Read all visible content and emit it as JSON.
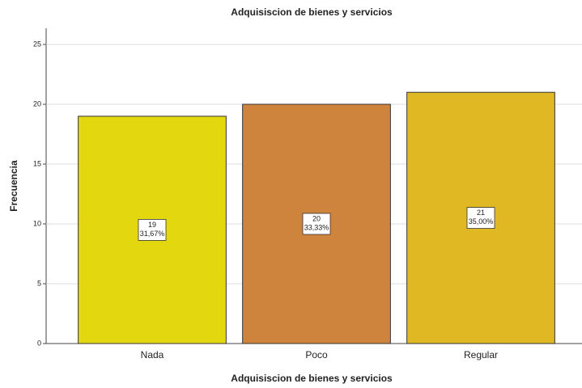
{
  "chart_data": {
    "type": "bar",
    "title": "Adquisiscion de bienes y servicios",
    "x_label": "Adquisiscion de bienes y servicios",
    "y_label": "Frecuencia",
    "categories": [
      "Nada",
      "Poco",
      "Regular"
    ],
    "values": [
      19,
      20,
      21
    ],
    "percent_labels": [
      "31,67%",
      "33,33%",
      "35,00%"
    ],
    "colors": [
      "#e3d80f",
      "#cf843d",
      "#e0b823"
    ],
    "ylim": [
      0,
      25
    ],
    "yticks": [
      0,
      5,
      10,
      15,
      20,
      25
    ],
    "grid": true
  }
}
